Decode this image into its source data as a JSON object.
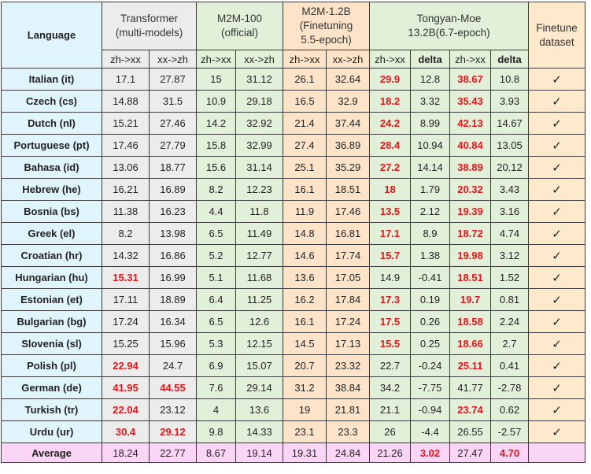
{
  "headers": {
    "language": "Language",
    "transformer": [
      "Transformer",
      "(multi-models)"
    ],
    "m2m100": [
      "M2M-100",
      "(official)"
    ],
    "m2m12b": [
      "M2M-1.2B",
      "(Finetuning",
      "5.5-epoch)"
    ],
    "tongyan": [
      "Tongyan-Moe",
      "13.2B(6.7-epoch)"
    ],
    "finetune": [
      "Finetune",
      "dataset"
    ],
    "sub": [
      "zh->xx",
      "xx->zh",
      "zh->xx",
      "xx->zh",
      "zh->xx",
      "xx->zh",
      "zh->xx",
      "delta",
      "zh->xx",
      "delta"
    ]
  },
  "rows": [
    {
      "lang": "Italian (it)",
      "v": [
        "17.1",
        "27.87",
        "15",
        "31.12",
        "26.1",
        "32.64",
        "29.9",
        "12.8",
        "38.67",
        "10.8"
      ],
      "red": [
        6,
        8
      ],
      "check": "✓"
    },
    {
      "lang": "Czech (cs)",
      "v": [
        "14.88",
        "31.5",
        "10.9",
        "29.18",
        "16.5",
        "32.9",
        "18.2",
        "3.32",
        "35.43",
        "3.93"
      ],
      "red": [
        6,
        8
      ],
      "check": "✓"
    },
    {
      "lang": "Dutch (nl)",
      "v": [
        "15.21",
        "27.46",
        "14.2",
        "32.92",
        "21.4",
        "37.44",
        "24.2",
        "8.99",
        "42.13",
        "14.67"
      ],
      "red": [
        6,
        8
      ],
      "check": "✓"
    },
    {
      "lang": "Portuguese (pt)",
      "v": [
        "17.46",
        "27.79",
        "15.8",
        "32.99",
        "27.4",
        "36.89",
        "28.4",
        "10.94",
        "40.84",
        "13.05"
      ],
      "red": [
        6,
        8
      ],
      "check": "✓"
    },
    {
      "lang": "Bahasa (id)",
      "v": [
        "13.06",
        "18.77",
        "15.6",
        "31.14",
        "25.1",
        "35.29",
        "27.2",
        "14.14",
        "38.89",
        "20.12"
      ],
      "red": [
        6,
        8
      ],
      "check": "✓"
    },
    {
      "lang": "Hebrew (he)",
      "v": [
        "16.21",
        "16.89",
        "8.2",
        "12.23",
        "16.1",
        "18.51",
        "18",
        "1.79",
        "20.32",
        "3.43"
      ],
      "red": [
        6,
        8
      ],
      "check": "✓"
    },
    {
      "lang": "Bosnia (bs)",
      "v": [
        "11.38",
        "16.23",
        "4.4",
        "11.8",
        "11.9",
        "17.46",
        "13.5",
        "2.12",
        "19.39",
        "3.16"
      ],
      "red": [
        6,
        8
      ],
      "check": "✓"
    },
    {
      "lang": "Greek (el)",
      "v": [
        "8.2",
        "13.98",
        "6.5",
        "11.49",
        "14.8",
        "16.81",
        "17.1",
        "8.9",
        "18.72",
        "4.74"
      ],
      "red": [
        6,
        8
      ],
      "check": "✓"
    },
    {
      "lang": "Croatian (hr)",
      "v": [
        "14.32",
        "16.86",
        "5.2",
        "12.77",
        "14.6",
        "17.74",
        "15.7",
        "1.38",
        "19.98",
        "3.12"
      ],
      "red": [
        6,
        8
      ],
      "check": "✓"
    },
    {
      "lang": "Hungarian (hu)",
      "v": [
        "15.31",
        "16.99",
        "5.1",
        "11.68",
        "13.6",
        "17.05",
        "14.9",
        "-0.41",
        "18.51",
        "1.52"
      ],
      "red": [
        0,
        8
      ],
      "check": "✓"
    },
    {
      "lang": "Estonian (et)",
      "v": [
        "17.11",
        "18.89",
        "6.4",
        "11.25",
        "16.2",
        "17.84",
        "17.3",
        "0.19",
        "19.7",
        "0.81"
      ],
      "red": [
        6,
        8
      ],
      "check": "✓"
    },
    {
      "lang": "Bulgarian (bg)",
      "v": [
        "17.24",
        "16.34",
        "6.5",
        "12.6",
        "16.1",
        "17.24",
        "17.5",
        "0.26",
        "18.58",
        "2.24"
      ],
      "red": [
        6,
        8
      ],
      "check": "✓"
    },
    {
      "lang": "Slovenia (sl)",
      "v": [
        "15.25",
        "15.96",
        "5.3",
        "12.15",
        "14.5",
        "17.13",
        "15.5",
        "0.25",
        "18.66",
        "2.7"
      ],
      "red": [
        6,
        8
      ],
      "check": "✓"
    },
    {
      "lang": "Polish (pl)",
      "v": [
        "22.94",
        "24.7",
        "6.9",
        "15.07",
        "20.7",
        "23.32",
        "22.7",
        "-0.24",
        "25.11",
        "0.41"
      ],
      "red": [
        0,
        8
      ],
      "check": "✓"
    },
    {
      "lang": "German (de)",
      "v": [
        "41.95",
        "44.55",
        "7.6",
        "29.14",
        "31.2",
        "38.84",
        "34.2",
        "-7.75",
        "41.77",
        "-2.78"
      ],
      "red": [
        0,
        1
      ],
      "check": "✓"
    },
    {
      "lang": "Turkish (tr)",
      "v": [
        "22.04",
        "23.12",
        "4",
        "13.6",
        "19",
        "21.81",
        "21.1",
        "-0.94",
        "23.74",
        "0.62"
      ],
      "red": [
        0,
        8
      ],
      "check": "✓"
    },
    {
      "lang": "Urdu (ur)",
      "v": [
        "30.4",
        "29.12",
        "9.8",
        "14.33",
        "23.1",
        "23.3",
        "26",
        "-4.4",
        "26.55",
        "-2.57"
      ],
      "red": [
        0,
        1
      ],
      "check": "✓"
    }
  ],
  "average": {
    "label": "Average",
    "v": [
      "18.24",
      "22.77",
      "8.67",
      "19.14",
      "19.31",
      "24.84",
      "21.26",
      "3.02",
      "27.47",
      "4.70"
    ],
    "red": [
      7,
      9
    ]
  }
}
